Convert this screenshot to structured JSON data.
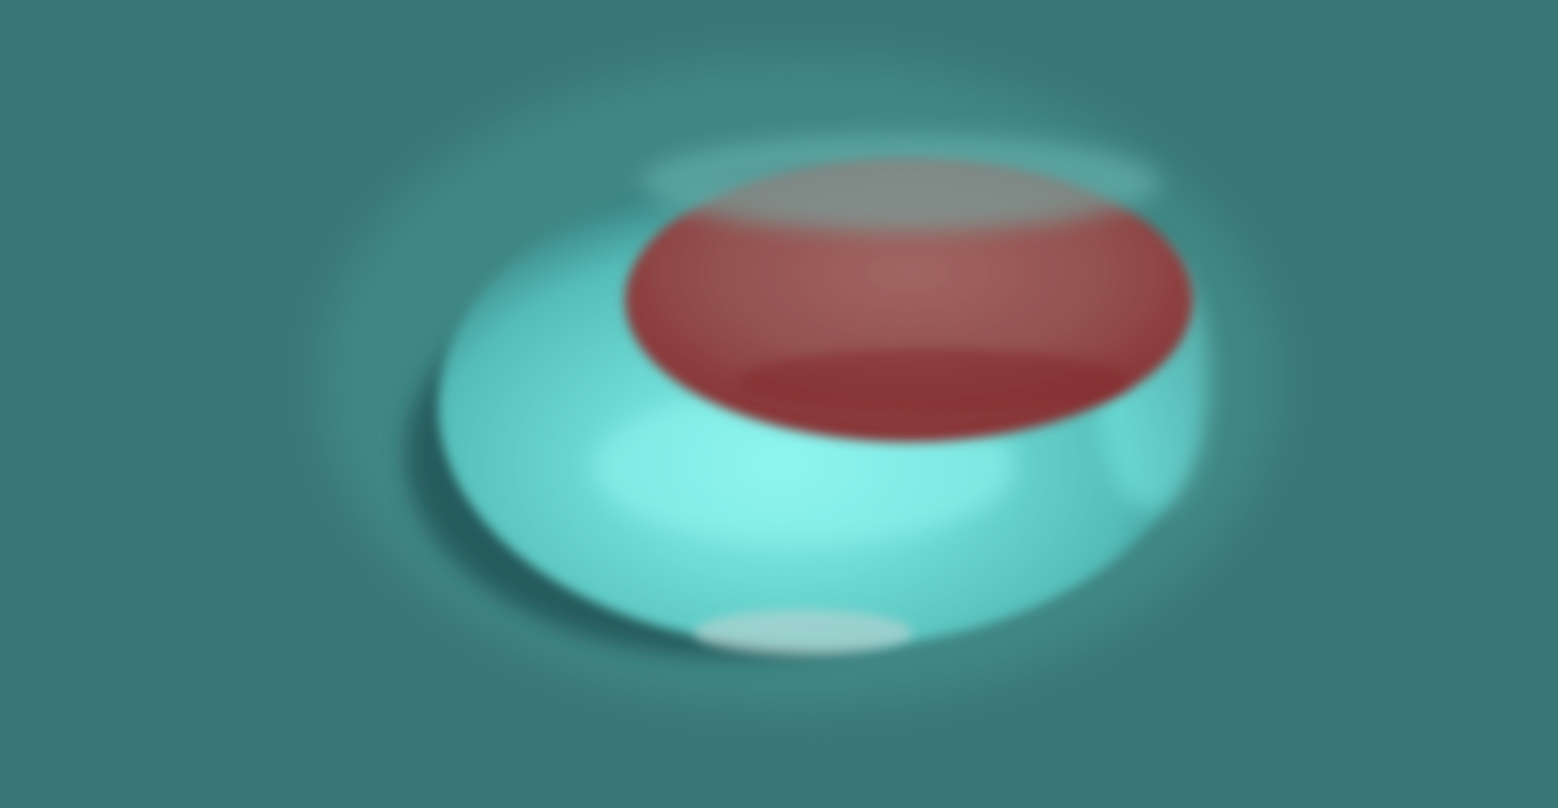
{
  "scene": {
    "subject": "3d-rendered-red-blood-cell",
    "colors": {
      "background": "#397876",
      "outer_glow": "#4a9a97",
      "rim_dark": "#1f4d4f",
      "rim_mid": "#58c3c0",
      "rim_light": "#79ece6",
      "highlight": "#8ff5ef",
      "center_dark": "#8a2a2e",
      "center_mid": "#95514f",
      "center_light": "#a16663",
      "bottom_sheen": "#c9d6d4"
    }
  }
}
